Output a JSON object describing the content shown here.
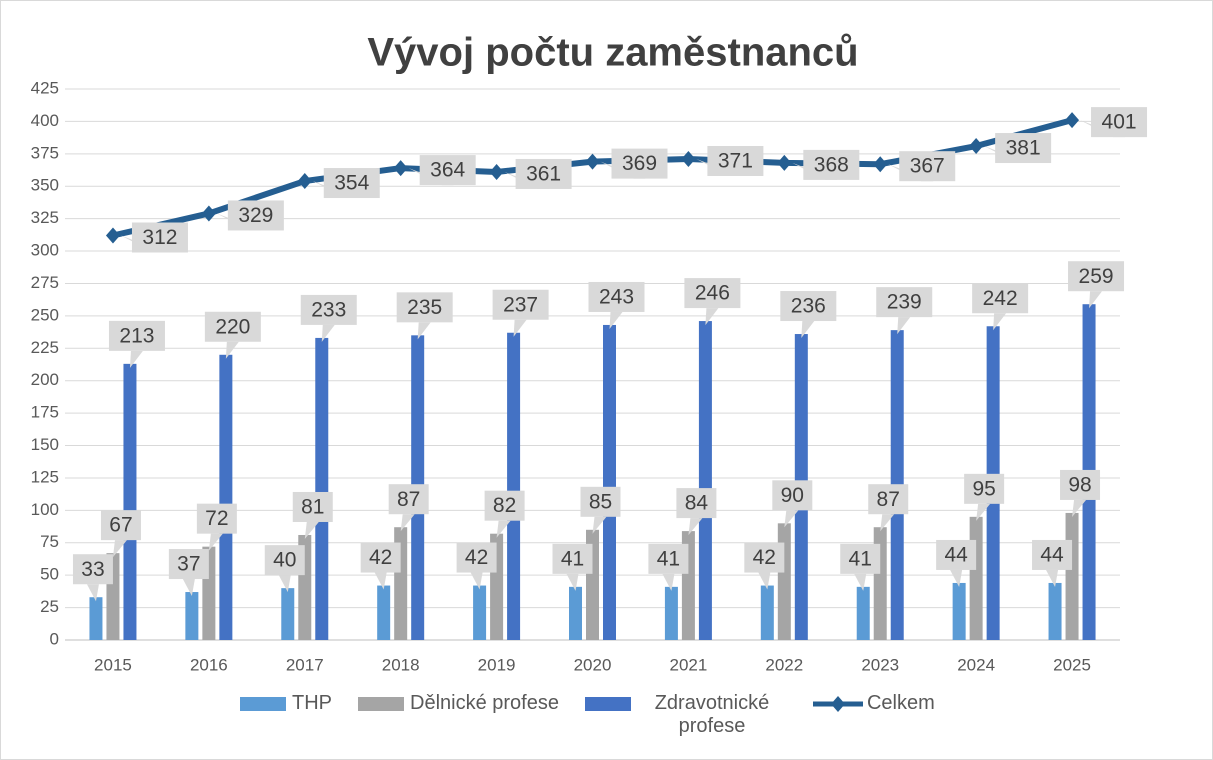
{
  "chart_data": {
    "type": "bar",
    "title": "Vývoj počtu zaměstnanců",
    "categories": [
      "2015",
      "2016",
      "2017",
      "2018",
      "2019",
      "2020",
      "2021",
      "2022",
      "2023",
      "2024",
      "2025"
    ],
    "series": [
      {
        "name": "THP",
        "color": "#5b9bd5",
        "values": [
          33,
          37,
          40,
          42,
          42,
          41,
          41,
          42,
          41,
          44,
          44
        ]
      },
      {
        "name": "Dělnické profese",
        "color": "#a5a5a5",
        "values": [
          67,
          72,
          81,
          87,
          82,
          85,
          84,
          90,
          87,
          95,
          98
        ]
      },
      {
        "name": "Zdravotnické profese",
        "color": "#4472c4",
        "values": [
          213,
          220,
          233,
          235,
          237,
          243,
          246,
          236,
          239,
          242,
          259
        ]
      },
      {
        "name": "Celkem",
        "type": "line",
        "color": "#255e91",
        "values": [
          312,
          329,
          354,
          364,
          361,
          369,
          371,
          368,
          367,
          381,
          401
        ]
      }
    ],
    "ylim": [
      0,
      425
    ],
    "yticks": [
      0,
      25,
      50,
      75,
      100,
      125,
      150,
      175,
      200,
      225,
      250,
      275,
      300,
      325,
      350,
      375,
      400,
      425
    ],
    "grid": true,
    "legend": "bottom"
  }
}
